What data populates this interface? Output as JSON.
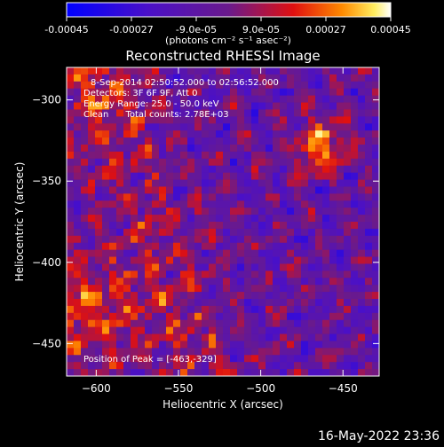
{
  "chart_data": {
    "type": "heatmap",
    "title": "Reconstructed RHESSI Image",
    "xlabel": "Heliocentric X (arcsec)",
    "ylabel": "Heliocentric Y (arcsec)",
    "xlim": [
      -618,
      -428
    ],
    "ylim": [
      -470,
      -280
    ],
    "x_ticks": [
      -600,
      -550,
      -500,
      -450
    ],
    "y_ticks": [
      -450,
      -400,
      -350,
      -300
    ],
    "colorbar": {
      "range": [
        -0.00045,
        0.00045
      ],
      "tick_values": [
        -0.00045,
        -0.00027,
        -9e-05,
        9e-05,
        0.00027,
        0.00045
      ],
      "tick_labels": [
        "-0.00045",
        "-0.00027",
        "-9.0e-05",
        "9.0e-05",
        "0.00027",
        "0.00045"
      ],
      "unit_label": "(photons cm⁻² s⁻¹ asec⁻²)",
      "colormap": "blue-purple-red-yellow-white"
    },
    "annotations": {
      "time": "8-Sep-2014 02:50:52.000 to 02:56:52.000",
      "detectors": "Detectors: 3F 6F 9F, Att 0",
      "energy": "Energy Range: 25.0 - 50.0 keV",
      "method": "Clean      Total counts: 2.78E+03",
      "peak": "Position of Peak = [-463,-329]"
    },
    "peak_position": [
      -463,
      -329
    ],
    "colors": {
      "background": "#000000",
      "text": "#ffffff"
    }
  },
  "footer_timestamp": "16-May-2022 23:36"
}
